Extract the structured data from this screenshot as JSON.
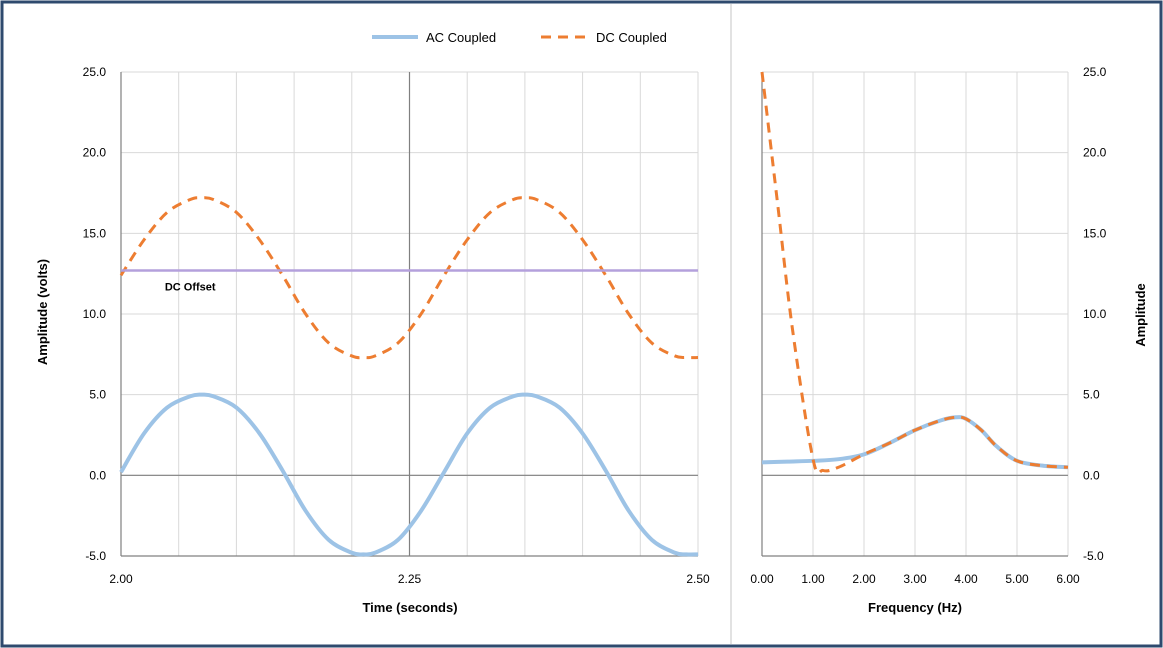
{
  "colors": {
    "frame_border": "#2e4a6e",
    "grid": "#d9d9d9",
    "axis": "#808080",
    "ac": "#9dc3e6",
    "dc": "#ed7d31",
    "offset": "#b4a0dc",
    "separator": "#d9d9d9",
    "text": "#000000"
  },
  "legend": {
    "ac_label": "AC Coupled",
    "dc_label": "DC Coupled"
  },
  "chart_data": [
    {
      "type": "line",
      "xlabel": "Time (seconds)",
      "ylabel": "Amplitude (volts)",
      "xlim": [
        2.0,
        2.5
      ],
      "ylim": [
        -5,
        25
      ],
      "x_ticks": [
        2.0,
        2.25,
        2.5
      ],
      "x_tick_labels": [
        "2.00",
        "2.25",
        "2.50"
      ],
      "x_gridline_step": 0.05,
      "y_ticks": [
        -5,
        0,
        5,
        10,
        15,
        20,
        25
      ],
      "y_tick_labels": [
        "-5.0",
        "0.0",
        "5.0",
        "10.0",
        "15.0",
        "20.0",
        "25.0"
      ],
      "grid": true,
      "annotations": [
        {
          "text": "DC Offset",
          "x": 2.038,
          "y": 12.2
        }
      ],
      "series": [
        {
          "name": "AC Coupled",
          "style": "solid",
          "x": [
            2.0,
            2.02,
            2.04,
            2.06,
            2.07,
            2.08,
            2.1,
            2.12,
            2.14,
            2.16,
            2.18,
            2.2,
            2.21,
            2.22,
            2.24,
            2.26,
            2.28,
            2.3,
            2.32,
            2.34,
            2.35,
            2.36,
            2.38,
            2.4,
            2.42,
            2.44,
            2.46,
            2.48,
            2.49,
            2.5
          ],
          "y": [
            0.2,
            2.6,
            4.2,
            4.9,
            5.0,
            4.9,
            4.2,
            2.6,
            0.3,
            -2.2,
            -4.0,
            -4.8,
            -4.9,
            -4.8,
            -4.0,
            -2.2,
            0.2,
            2.6,
            4.2,
            4.9,
            5.0,
            4.9,
            4.2,
            2.6,
            0.3,
            -2.2,
            -4.0,
            -4.8,
            -4.9,
            -4.9
          ]
        },
        {
          "name": "DC Coupled",
          "style": "dashed",
          "x": [
            2.0,
            2.02,
            2.04,
            2.06,
            2.07,
            2.08,
            2.1,
            2.12,
            2.14,
            2.16,
            2.18,
            2.2,
            2.21,
            2.22,
            2.24,
            2.26,
            2.28,
            2.3,
            2.32,
            2.34,
            2.35,
            2.36,
            2.38,
            2.4,
            2.42,
            2.44,
            2.46,
            2.48,
            2.49,
            2.5
          ],
          "y": [
            12.4,
            14.6,
            16.3,
            17.1,
            17.2,
            17.1,
            16.3,
            14.6,
            12.4,
            10.0,
            8.2,
            7.4,
            7.3,
            7.4,
            8.2,
            10.0,
            12.4,
            14.6,
            16.3,
            17.1,
            17.2,
            17.1,
            16.3,
            14.6,
            12.4,
            10.0,
            8.2,
            7.4,
            7.3,
            7.3
          ]
        },
        {
          "name": "DC Offset",
          "style": "solid",
          "x": [
            2.0,
            2.5
          ],
          "y": [
            12.7,
            12.7
          ]
        }
      ]
    },
    {
      "type": "line",
      "xlabel": "Frequency (Hz)",
      "ylabel": "Amplitude",
      "xlim": [
        0,
        6
      ],
      "ylim": [
        -5,
        25
      ],
      "x_ticks": [
        0,
        1,
        2,
        3,
        4,
        5,
        6
      ],
      "x_tick_labels": [
        "0.00",
        "1.00",
        "2.00",
        "3.00",
        "4.00",
        "5.00",
        "6.00"
      ],
      "y_ticks": [
        -5,
        0,
        5,
        10,
        15,
        20,
        25
      ],
      "y_tick_labels": [
        "-5.0",
        "0.0",
        "5.0",
        "10.0",
        "15.0",
        "20.0",
        "25.0"
      ],
      "y_axis_side": "right",
      "grid": true,
      "series": [
        {
          "name": "AC Coupled",
          "style": "solid",
          "x": [
            0,
            0.5,
            1,
            1.5,
            2,
            2.5,
            3,
            3.5,
            3.8,
            4,
            4.3,
            4.6,
            5,
            5.5,
            6
          ],
          "y": [
            0.8,
            0.85,
            0.9,
            1.0,
            1.3,
            2.0,
            2.8,
            3.4,
            3.6,
            3.5,
            2.8,
            1.8,
            0.9,
            0.6,
            0.5
          ]
        },
        {
          "name": "DC Coupled",
          "style": "dashed",
          "x": [
            0,
            0.3,
            0.6,
            1.0,
            1.2,
            1.5,
            2,
            2.5,
            3,
            3.5,
            3.8,
            4,
            4.3,
            4.6,
            5,
            5.5,
            6
          ],
          "y": [
            25,
            17.0,
            9.0,
            1.0,
            0.3,
            0.5,
            1.3,
            2.0,
            2.8,
            3.4,
            3.6,
            3.5,
            2.8,
            1.8,
            0.9,
            0.6,
            0.5
          ]
        }
      ]
    }
  ]
}
